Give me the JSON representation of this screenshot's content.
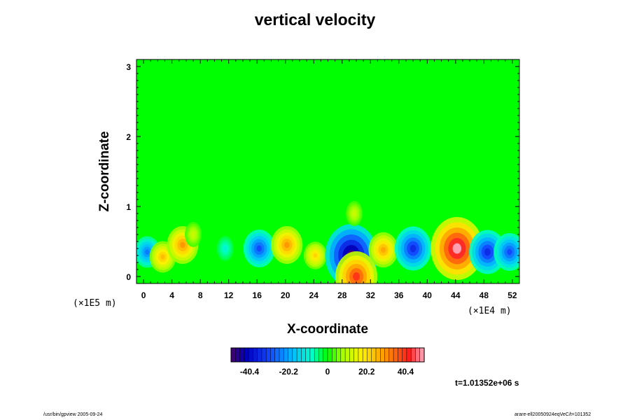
{
  "chart_data": {
    "type": "heatmap",
    "title": "vertical velocity",
    "xlabel": "X-coordinate",
    "ylabel": "Z-coordinate",
    "x_unit": "(×1E4 m)",
    "z_unit": "(×1E5 m)",
    "xlim": [
      -1,
      53
    ],
    "ylim": [
      -0.1,
      3.1
    ],
    "x_ticks": [
      "0",
      "4",
      "8",
      "12",
      "16",
      "20",
      "24",
      "28",
      "32",
      "36",
      "40",
      "44",
      "48",
      "52"
    ],
    "y_ticks": [
      "0",
      "1",
      "2",
      "3"
    ],
    "background_value": 0,
    "features": [
      {
        "x": 0.5,
        "z": 0.35,
        "value": -25
      },
      {
        "x": 2.7,
        "z": 0.28,
        "value": 25
      },
      {
        "x": 5.5,
        "z": 0.45,
        "value": 30
      },
      {
        "x": 7.0,
        "z": 0.6,
        "value": 12
      },
      {
        "x": 11.5,
        "z": 0.4,
        "value": -10
      },
      {
        "x": 16.3,
        "z": 0.4,
        "value": -30
      },
      {
        "x": 20.2,
        "z": 0.45,
        "value": 30
      },
      {
        "x": 24.2,
        "z": 0.3,
        "value": 22
      },
      {
        "x": 29.3,
        "z": 0.3,
        "value": -50
      },
      {
        "x": 30.0,
        "z": 0.0,
        "value": 40
      },
      {
        "x": 29.7,
        "z": 0.9,
        "value": 12
      },
      {
        "x": 33.8,
        "z": 0.38,
        "value": 28
      },
      {
        "x": 38.0,
        "z": 0.4,
        "value": -35
      },
      {
        "x": 44.2,
        "z": 0.4,
        "value": 50
      },
      {
        "x": 48.5,
        "z": 0.35,
        "value": -35
      },
      {
        "x": 51.6,
        "z": 0.35,
        "value": -30
      }
    ],
    "colorbar": {
      "range": [
        -50,
        50
      ],
      "tick_labels": [
        "-40.4",
        "-20.2",
        "0",
        "20.2",
        "40.4"
      ],
      "tick_values": [
        -40.4,
        -20.2,
        0,
        20.2,
        40.4
      ]
    },
    "annotation": "t=1.01352e+06 s"
  },
  "footer": {
    "left": "/usr/bin/gpview 2005-09-24",
    "right": "arare-ell20050924eqVeC/t=101352"
  }
}
